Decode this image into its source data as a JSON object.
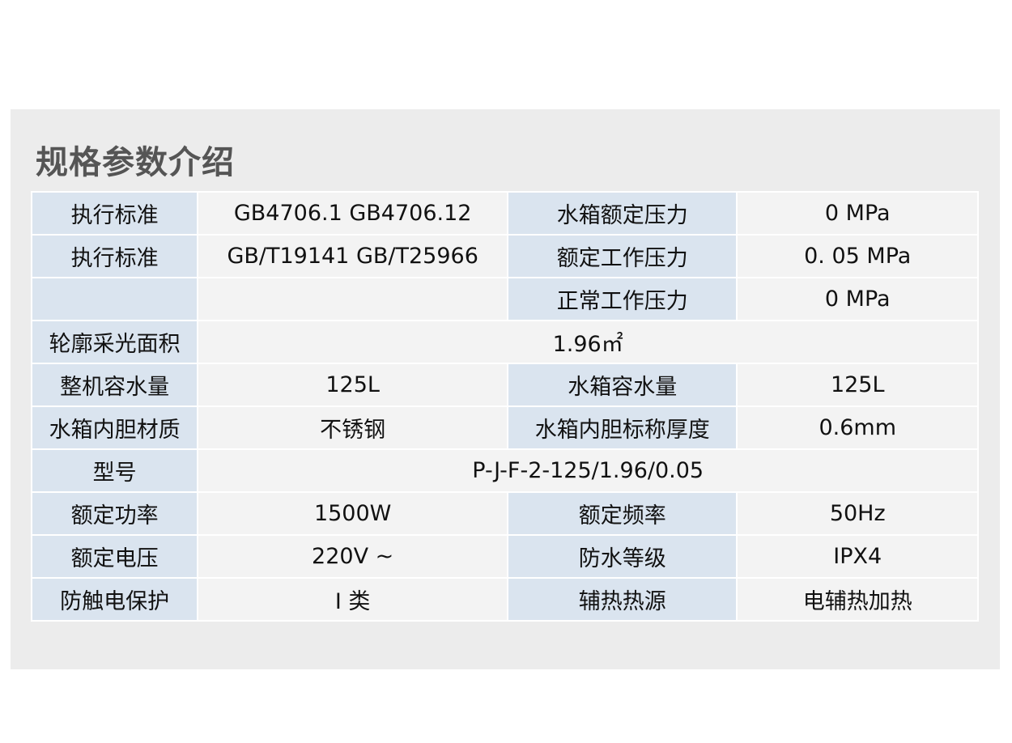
{
  "title": "规格参数介绍",
  "rows": [
    {
      "cells": [
        {
          "t": "执行标准",
          "k": "l"
        },
        {
          "t": "GB4706.1 GB4706.12",
          "k": "v"
        },
        {
          "t": "水箱额定压力",
          "k": "l"
        },
        {
          "t": "0  MPa",
          "k": "v"
        }
      ]
    },
    {
      "cells": [
        {
          "t": "执行标准",
          "k": "l"
        },
        {
          "t": "GB/T19141 GB/T25966",
          "k": "v"
        },
        {
          "t": "额定工作压力",
          "k": "l"
        },
        {
          "t": "0. 05  MPa",
          "k": "v"
        }
      ]
    },
    {
      "cells": [
        {
          "t": "",
          "k": "l"
        },
        {
          "t": "",
          "k": "v"
        },
        {
          "t": "正常工作压力",
          "k": "l"
        },
        {
          "t": "0  MPa",
          "k": "v"
        }
      ]
    },
    {
      "cells": [
        {
          "t": "轮廓采光面积",
          "k": "l"
        },
        {
          "t": "1.96㎡",
          "k": "v",
          "span": 3
        }
      ]
    },
    {
      "cells": [
        {
          "t": "整机容水量",
          "k": "l"
        },
        {
          "t": "125L",
          "k": "v"
        },
        {
          "t": "水箱容水量",
          "k": "l"
        },
        {
          "t": "125L",
          "k": "v"
        }
      ]
    },
    {
      "cells": [
        {
          "t": "水箱内胆材质",
          "k": "l"
        },
        {
          "t": "不锈钢",
          "k": "v"
        },
        {
          "t": "水箱内胆标称厚度",
          "k": "l"
        },
        {
          "t": "0.6mm",
          "k": "v"
        }
      ]
    },
    {
      "cells": [
        {
          "t": "型号",
          "k": "l"
        },
        {
          "t": "P-J-F-2-125/1.96/0.05",
          "k": "v",
          "span": 3
        }
      ]
    },
    {
      "cells": [
        {
          "t": "额定功率",
          "k": "l"
        },
        {
          "t": "1500W",
          "k": "v"
        },
        {
          "t": "额定频率",
          "k": "l"
        },
        {
          "t": "50Hz",
          "k": "v"
        }
      ]
    },
    {
      "cells": [
        {
          "t": "额定电压",
          "k": "l"
        },
        {
          "t": "220V ~",
          "k": "v"
        },
        {
          "t": "防水等级",
          "k": "l"
        },
        {
          "t": "IPX4",
          "k": "v"
        }
      ]
    },
    {
      "cells": [
        {
          "t": "防触电保护",
          "k": "l"
        },
        {
          "t": "I 类",
          "k": "v"
        },
        {
          "t": "辅热热源",
          "k": "l"
        },
        {
          "t": "电辅热加热",
          "k": "v"
        }
      ]
    }
  ]
}
